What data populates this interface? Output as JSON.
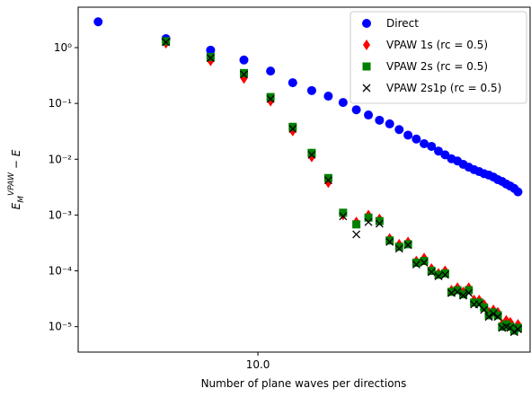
{
  "chart_data": {
    "type": "scatter",
    "xlabel": "Number of plane waves per directions",
    "ylabel": {
      "base": "E",
      "sub": "M",
      "sup": "VPAW",
      "rest": " − E"
    },
    "xscale": "log",
    "yscale": "log",
    "legend": "upper right",
    "xlim": [
      2.58,
      77.8
    ],
    "ylim": [
      3.5e-06,
      5.3
    ],
    "xticks": [
      {
        "value": 10,
        "label": "10.0"
      }
    ],
    "yticks": [
      {
        "value": 1e-05,
        "label": "10⁻⁵"
      },
      {
        "value": 0.0001,
        "label": "10⁻⁴"
      },
      {
        "value": 0.001,
        "label": "10⁻³"
      },
      {
        "value": 0.01,
        "label": "10⁻²"
      },
      {
        "value": 0.1,
        "label": "10⁻¹"
      },
      {
        "value": 1,
        "label": "10⁰"
      }
    ],
    "x": [
      3,
      5,
      7,
      9,
      11,
      13,
      15,
      17,
      19,
      21,
      23,
      25,
      27,
      29,
      31,
      33,
      35,
      37,
      39,
      41,
      43,
      45,
      47,
      49,
      51,
      53,
      55,
      57,
      59,
      61,
      63,
      65,
      67,
      69,
      71
    ],
    "series": [
      {
        "name": "Direct",
        "color": "#0000ff",
        "marker": "circle",
        "values": [
          2.9,
          1.45,
          0.9,
          0.6,
          0.38,
          0.235,
          0.17,
          0.135,
          0.104,
          0.077,
          0.062,
          0.05,
          0.043,
          0.034,
          0.027,
          0.023,
          0.019,
          0.017,
          0.014,
          0.012,
          0.0102,
          0.0093,
          0.0081,
          0.0072,
          0.0065,
          0.006,
          0.0055,
          0.0052,
          0.0048,
          0.0043,
          0.004,
          0.0036,
          0.0033,
          0.003,
          0.0026
        ]
      },
      {
        "name": "VPAW 1s (rc = 0.5)",
        "color": "#ff0000",
        "marker": "diamond",
        "values": [
          null,
          1.2,
          0.58,
          0.28,
          0.11,
          0.032,
          0.011,
          0.0038,
          0.001,
          0.00075,
          0.001,
          0.00085,
          0.00038,
          0.0003,
          0.00033,
          0.00015,
          0.00017,
          0.00011,
          9e-05,
          0.0001,
          4.5e-05,
          5e-05,
          4.2e-05,
          5e-05,
          3e-05,
          3e-05,
          2.5e-05,
          1.8e-05,
          2e-05,
          1.8e-05,
          1.1e-05,
          1.3e-05,
          1.2e-05,
          9e-06,
          1.1e-05
        ]
      },
      {
        "name": "VPAW 2s (rc = 0.5)",
        "color": "#008000",
        "marker": "square",
        "values": [
          null,
          1.3,
          0.68,
          0.35,
          0.13,
          0.038,
          0.013,
          0.0046,
          0.0011,
          0.00068,
          0.0009,
          0.00078,
          0.00035,
          0.00027,
          0.0003,
          0.00014,
          0.00015,
          0.0001,
          8.5e-05,
          9e-05,
          4.2e-05,
          4.5e-05,
          3.8e-05,
          4.5e-05,
          2.7e-05,
          2.7e-05,
          2.2e-05,
          1.6e-05,
          1.8e-05,
          1.6e-05,
          1e-05,
          1.1e-05,
          1e-05,
          8.5e-06,
          9.5e-06
        ]
      },
      {
        "name": "VPAW 2s1p (rc = 0.5)",
        "color": "#000000",
        "marker": "x",
        "values": [
          null,
          1.25,
          0.65,
          0.33,
          0.12,
          0.035,
          0.012,
          0.0042,
          0.00095,
          0.00045,
          0.00075,
          0.0007,
          0.00033,
          0.00025,
          0.00029,
          0.00013,
          0.00014,
          9.5e-05,
          8e-05,
          8.5e-05,
          4e-05,
          4.2e-05,
          3.6e-05,
          4e-05,
          2.5e-05,
          2.5e-05,
          2e-05,
          1.5e-05,
          1.7e-05,
          1.5e-05,
          9.5e-06,
          1e-05,
          9.5e-06,
          8e-06,
          9e-06
        ]
      }
    ]
  }
}
